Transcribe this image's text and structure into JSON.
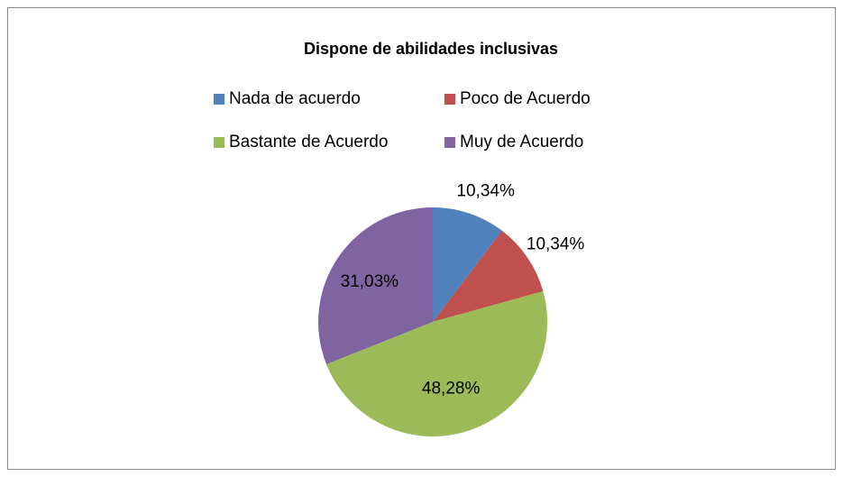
{
  "chart_data": {
    "type": "pie",
    "title": "Dispone de abilidades inclusivas",
    "categories": [
      "Nada de acuerdo",
      "Poco de Acuerdo",
      "Bastante de Acuerdo",
      "Muy de Acuerdo"
    ],
    "values": [
      10.34,
      10.34,
      48.28,
      31.03
    ],
    "value_labels": [
      "10,34%",
      "10,34%",
      "48,28%",
      "31,03%"
    ],
    "colors": [
      "#4f81bd",
      "#c0504d",
      "#9bbb59",
      "#8064a2"
    ],
    "legend": "top"
  }
}
